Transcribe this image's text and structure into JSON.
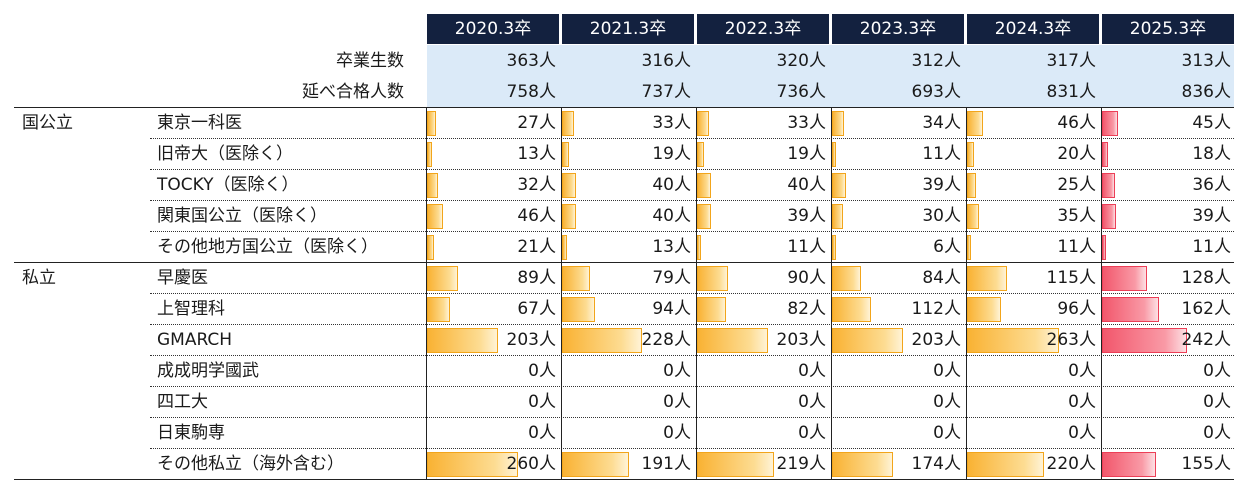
{
  "columns": [
    "2020.3卒",
    "2021.3卒",
    "2022.3卒",
    "2023.3卒",
    "2024.3卒",
    "2025.3卒"
  ],
  "summary_rows": [
    {
      "label": "卒業生数",
      "values": [
        "363人",
        "316人",
        "320人",
        "312人",
        "317人",
        "313人"
      ]
    },
    {
      "label": "延べ合格人数",
      "values": [
        "758人",
        "737人",
        "736人",
        "693人",
        "831人",
        "836人"
      ]
    }
  ],
  "groups": [
    {
      "category": "国公立",
      "rows": [
        {
          "label": "東京一科医",
          "values": [
            "27人",
            "33人",
            "33人",
            "34人",
            "46人",
            "45人"
          ],
          "counts": [
            27,
            33,
            33,
            34,
            46,
            45
          ]
        },
        {
          "label": "旧帝大（医除く）",
          "values": [
            "13人",
            "19人",
            "19人",
            "11人",
            "20人",
            "18人"
          ],
          "counts": [
            13,
            19,
            19,
            11,
            20,
            18
          ]
        },
        {
          "label": "TOCKY（医除く）",
          "values": [
            "32人",
            "40人",
            "40人",
            "39人",
            "25人",
            "36人"
          ],
          "counts": [
            32,
            40,
            40,
            39,
            25,
            36
          ]
        },
        {
          "label": "関東国公立（医除く）",
          "values": [
            "46人",
            "40人",
            "39人",
            "30人",
            "35人",
            "39人"
          ],
          "counts": [
            46,
            40,
            39,
            30,
            35,
            39
          ]
        },
        {
          "label": "その他地方国公立（医除く）",
          "values": [
            "21人",
            "13人",
            "11人",
            "6人",
            "11人",
            "11人"
          ],
          "counts": [
            21,
            13,
            11,
            6,
            11,
            11
          ]
        }
      ]
    },
    {
      "category": "私立",
      "rows": [
        {
          "label": "早慶医",
          "values": [
            "89人",
            "79人",
            "90人",
            "84人",
            "115人",
            "128人"
          ],
          "counts": [
            89,
            79,
            90,
            84,
            115,
            128
          ]
        },
        {
          "label": "上智理科",
          "values": [
            "67人",
            "94人",
            "82人",
            "112人",
            "96人",
            "162人"
          ],
          "counts": [
            67,
            94,
            82,
            112,
            96,
            162
          ]
        },
        {
          "label": "GMARCH",
          "values": [
            "203人",
            "228人",
            "203人",
            "203人",
            "263人",
            "242人"
          ],
          "counts": [
            203,
            228,
            203,
            203,
            263,
            242
          ]
        },
        {
          "label": "成成明学國武",
          "values": [
            "0人",
            "0人",
            "0人",
            "0人",
            "0人",
            "0人"
          ],
          "counts": [
            0,
            0,
            0,
            0,
            0,
            0
          ]
        },
        {
          "label": "四工大",
          "values": [
            "0人",
            "0人",
            "0人",
            "0人",
            "0人",
            "0人"
          ],
          "counts": [
            0,
            0,
            0,
            0,
            0,
            0
          ]
        },
        {
          "label": "日東駒専",
          "values": [
            "0人",
            "0人",
            "0人",
            "0人",
            "0人",
            "0人"
          ],
          "counts": [
            0,
            0,
            0,
            0,
            0,
            0
          ]
        },
        {
          "label": "その他私立（海外含む）",
          "values": [
            "260人",
            "191人",
            "219人",
            "174人",
            "220人",
            "155人"
          ],
          "counts": [
            260,
            191,
            219,
            174,
            220,
            155
          ]
        }
      ]
    }
  ],
  "colors": {
    "header_bg": "#13213f",
    "summary_bg": "#dbeaf8",
    "bar_orange": "#f9b233",
    "bar_red": "#f2576c"
  }
}
